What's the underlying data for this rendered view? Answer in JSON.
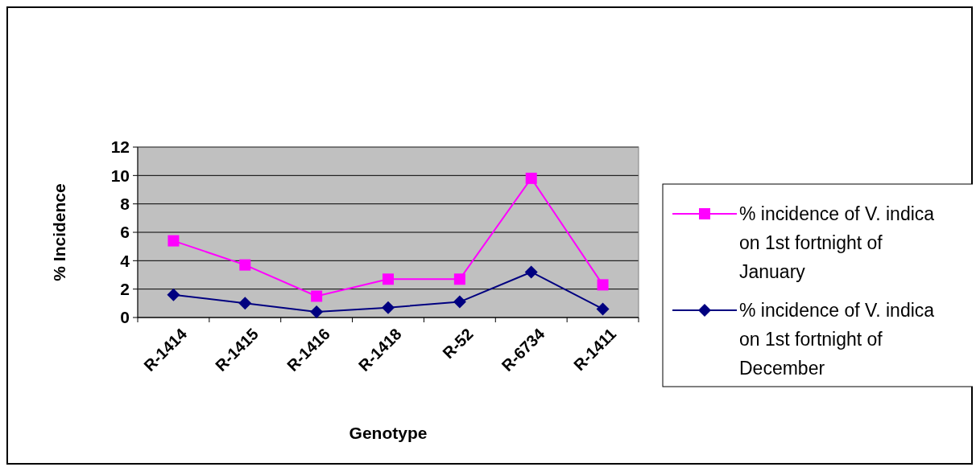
{
  "chart_data": {
    "type": "line",
    "xlabel": "Genotype",
    "ylabel": "% Incidence",
    "categories": [
      "R-1414",
      "R-1415",
      "R-1416",
      "R-1418",
      "R-52",
      "R-6734",
      "R-1411"
    ],
    "series": [
      {
        "name": "% incidence of V. indica on 1st fortnight of January",
        "color": "#ff00ff",
        "marker": "square",
        "values": [
          5.4,
          3.7,
          1.5,
          2.7,
          2.7,
          9.8,
          2.3
        ]
      },
      {
        "name": "% incidence of V. indica on 1st fortnight of December",
        "color": "#000080",
        "marker": "diamond",
        "values": [
          1.6,
          1.0,
          0.4,
          0.7,
          1.1,
          3.2,
          0.6
        ]
      }
    ],
    "ylim": [
      0,
      12
    ],
    "yticks": [
      0,
      2,
      4,
      6,
      8,
      10,
      12
    ],
    "grid": "y",
    "legend": "right"
  }
}
